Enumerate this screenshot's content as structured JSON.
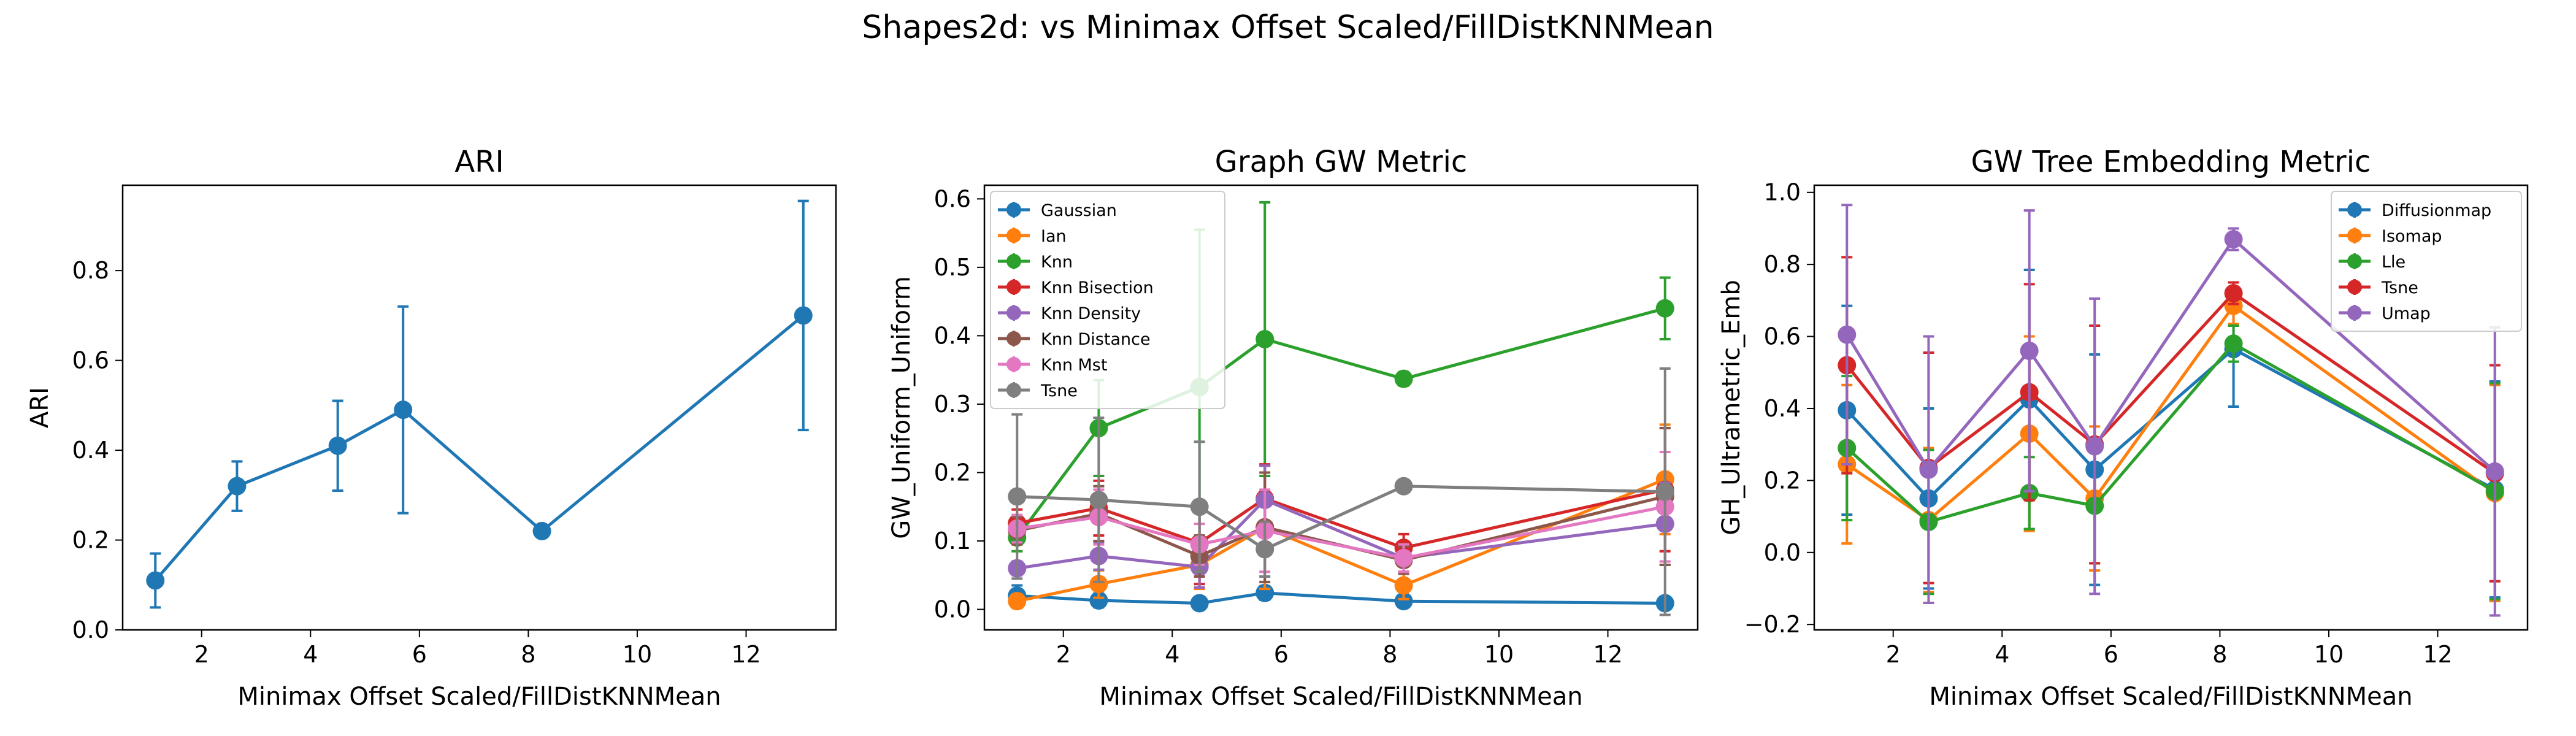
{
  "figure": {
    "title": "Shapes2d: vs Minimax Offset Scaled/FillDistKNNMean"
  },
  "chart_data": [
    {
      "type": "line",
      "title": "ARI",
      "xlabel": "Minimax Offset Scaled/FillDistKNNMean",
      "ylabel": "ARI",
      "xlim": [
        0.55,
        13.65
      ],
      "ylim": [
        0.0,
        0.99
      ],
      "xticks": [
        2,
        4,
        6,
        8,
        10,
        12
      ],
      "yticks": [
        0.0,
        0.2,
        0.4,
        0.6,
        0.8
      ],
      "ytick_decimals": 1,
      "grid": false,
      "legend": null,
      "x": [
        1.15,
        2.65,
        4.5,
        5.7,
        8.25,
        13.05
      ],
      "series": [
        {
          "values": [
            0.11,
            0.32,
            0.41,
            0.49,
            0.22,
            0.7
          ],
          "errors": [
            0.06,
            0.055,
            0.1,
            0.23,
            0.01,
            0.255
          ],
          "color": "#1f77b4"
        }
      ]
    },
    {
      "type": "line",
      "title": "Graph GW Metric",
      "xlabel": "Minimax Offset Scaled/FillDistKNNMean",
      "ylabel": "GW_Uniform_Uniform",
      "xlim": [
        0.55,
        13.65
      ],
      "ylim": [
        -0.03,
        0.62
      ],
      "xticks": [
        2,
        4,
        6,
        8,
        10,
        12
      ],
      "yticks": [
        0.0,
        0.1,
        0.2,
        0.3,
        0.4,
        0.5,
        0.6
      ],
      "ytick_decimals": 1,
      "grid": false,
      "legend": "upper left",
      "x": [
        1.15,
        2.65,
        4.5,
        5.7,
        8.25,
        13.05
      ],
      "series": [
        {
          "name": "Gaussian",
          "color": "#1f77b4",
          "values": [
            0.02,
            0.013,
            0.009,
            0.024,
            0.012,
            0.009
          ],
          "errors": [
            0.015,
            0.01,
            0.008,
            0.01,
            0.005,
            0.006
          ]
        },
        {
          "name": "Ian",
          "color": "#ff7f0e",
          "values": [
            0.012,
            0.037,
            0.065,
            0.12,
            0.035,
            0.19
          ],
          "errors": [
            0.01,
            0.02,
            0.035,
            0.09,
            0.02,
            0.08
          ]
        },
        {
          "name": "Knn",
          "color": "#2ca02c",
          "values": [
            0.105,
            0.265,
            0.325,
            0.395,
            0.337,
            0.44
          ],
          "errors": [
            0.02,
            0.07,
            0.23,
            0.2,
            0.01,
            0.045
          ]
        },
        {
          "name": "Knn Bisection",
          "color": "#d62728",
          "values": [
            0.126,
            0.148,
            0.097,
            0.162,
            0.09,
            0.175
          ],
          "errors": [
            0.02,
            0.04,
            0.06,
            0.05,
            0.02,
            0.09
          ]
        },
        {
          "name": "Knn Density",
          "color": "#9467bd",
          "values": [
            0.06,
            0.078,
            0.062,
            0.16,
            0.075,
            0.125
          ],
          "errors": [
            0.01,
            0.02,
            0.03,
            0.05,
            0.02,
            0.06
          ]
        },
        {
          "name": "Knn Distance",
          "color": "#8c564b",
          "values": [
            0.115,
            0.14,
            0.078,
            0.12,
            0.072,
            0.165
          ],
          "errors": [
            0.02,
            0.04,
            0.03,
            0.08,
            0.02,
            0.1
          ]
        },
        {
          "name": "Knn Mst",
          "color": "#e377c2",
          "values": [
            0.118,
            0.135,
            0.095,
            0.115,
            0.075,
            0.15
          ],
          "errors": [
            0.02,
            0.04,
            0.03,
            0.06,
            0.02,
            0.08
          ]
        },
        {
          "name": "Tsne",
          "color": "#7f7f7f",
          "values": [
            0.165,
            0.16,
            0.15,
            0.088,
            0.18,
            0.172
          ],
          "errors": [
            0.12,
            0.12,
            0.095,
            0.04,
            0.005,
            0.18
          ]
        }
      ]
    },
    {
      "type": "line",
      "title": "GW Tree Embedding Metric",
      "xlabel": "Minimax Offset Scaled/FillDistKNNMean",
      "ylabel": "GH_Ultrametric_Emb",
      "xlim": [
        0.55,
        13.65
      ],
      "ylim": [
        -0.215,
        1.02
      ],
      "xticks": [
        2,
        4,
        6,
        8,
        10,
        12
      ],
      "yticks": [
        -0.2,
        0.0,
        0.2,
        0.4,
        0.6,
        0.8,
        1.0
      ],
      "ytick_decimals": 1,
      "grid": false,
      "legend": "upper right",
      "x": [
        1.15,
        2.65,
        4.5,
        5.7,
        8.25,
        13.05
      ],
      "series": [
        {
          "name": "Diffusionmap",
          "color": "#1f77b4",
          "values": [
            0.395,
            0.15,
            0.425,
            0.23,
            0.565,
            0.175
          ],
          "errors": [
            0.29,
            0.25,
            0.36,
            0.32,
            0.16,
            0.3
          ]
        },
        {
          "name": "Isomap",
          "color": "#ff7f0e",
          "values": [
            0.245,
            0.09,
            0.33,
            0.15,
            0.685,
            0.165
          ],
          "errors": [
            0.22,
            0.2,
            0.27,
            0.2,
            0.05,
            0.3
          ]
        },
        {
          "name": "Lle",
          "color": "#2ca02c",
          "values": [
            0.29,
            0.085,
            0.165,
            0.13,
            0.58,
            0.17
          ],
          "errors": [
            0.2,
            0.2,
            0.1,
            0.16,
            0.05,
            0.3
          ]
        },
        {
          "name": "Tsne",
          "color": "#d62728",
          "values": [
            0.52,
            0.235,
            0.445,
            0.3,
            0.72,
            0.22
          ],
          "errors": [
            0.3,
            0.32,
            0.3,
            0.33,
            0.03,
            0.3
          ]
        },
        {
          "name": "Umap",
          "color": "#9467bd",
          "values": [
            0.605,
            0.23,
            0.56,
            0.295,
            0.87,
            0.225
          ],
          "errors": [
            0.36,
            0.37,
            0.39,
            0.41,
            0.03,
            0.4
          ]
        }
      ]
    }
  ]
}
